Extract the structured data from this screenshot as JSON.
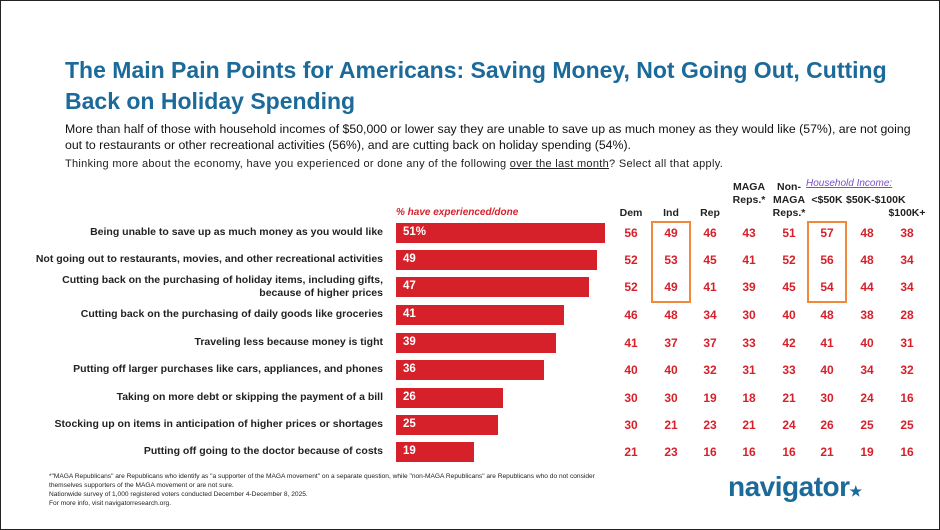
{
  "title": "The Main Pain Points for Americans: Saving Money, Not Going Out, Cutting Back on Holiday Spending",
  "subtitle": "More than half of those with household incomes of $50,000 or lower say they are unable to save up as much money as they would like (57%), are not going out to restaurants or other recreational activities (56%), and are cutting back on holiday spending (54%).",
  "question_pre": "Thinking more about the economy, have you experienced or done any of the following ",
  "question_underlined": "over the last month",
  "question_post": "? Select all that apply.",
  "footnote": [
    "*\"MAGA Republicans\" are Republicans who identify as \"a supporter of the MAGA movement\" on a separate question, while \"non-MAGA Republicans\" are Republicans who do not consider themselves supporters of the MAGA movement or are not sure.",
    "Nationwide survey of 1,000 registered voters conducted December 4-December 8, 2025.",
    "For more info, visit navigatorresearch.org."
  ],
  "logo": "navigator",
  "colors": {
    "bar": "#d6212b",
    "title": "#1b6a9a",
    "highlight": "#f08a3a"
  },
  "chart_data": {
    "type": "bar",
    "bar_header": "% have experienced/done",
    "group_header": "Household Income:",
    "columns": [
      "Dem",
      "Ind",
      "Rep",
      "MAGA Reps.*",
      "Non-MAGA Reps.*",
      "<$50K",
      "$50K-$100K",
      "$100K+"
    ],
    "categories": [
      "Being unable to save up as much money as you would like",
      "Not going out to restaurants, movies, and other recreational activities",
      "Cutting back on the purchasing of holiday items, including gifts, because of higher prices",
      "Cutting back on the purchasing of daily goods like groceries",
      "Traveling less because money is tight",
      "Putting off larger purchases like cars, appliances, and phones",
      "Taking on more debt or skipping the payment of a bill",
      "Stocking up on items in anticipation of higher prices or shortages",
      "Putting off going to the doctor because of costs"
    ],
    "values": [
      51,
      49,
      47,
      41,
      39,
      36,
      26,
      25,
      19
    ],
    "value_labels": [
      "51%",
      "49",
      "47",
      "41",
      "39",
      "36",
      "26",
      "25",
      "19"
    ],
    "table": [
      [
        56,
        49,
        46,
        43,
        51,
        57,
        48,
        38
      ],
      [
        52,
        53,
        45,
        41,
        52,
        56,
        48,
        34
      ],
      [
        52,
        49,
        41,
        39,
        45,
        54,
        44,
        34
      ],
      [
        46,
        48,
        34,
        30,
        40,
        48,
        38,
        28
      ],
      [
        41,
        37,
        37,
        33,
        42,
        41,
        40,
        31
      ],
      [
        40,
        40,
        32,
        31,
        33,
        40,
        34,
        32
      ],
      [
        30,
        30,
        19,
        18,
        21,
        30,
        24,
        16
      ],
      [
        30,
        21,
        23,
        21,
        24,
        26,
        25,
        25
      ],
      [
        21,
        23,
        16,
        16,
        16,
        21,
        19,
        16
      ]
    ],
    "highlighted_columns": [
      "Ind",
      "<$50K"
    ],
    "highlighted_rows": [
      0,
      1,
      2
    ]
  }
}
